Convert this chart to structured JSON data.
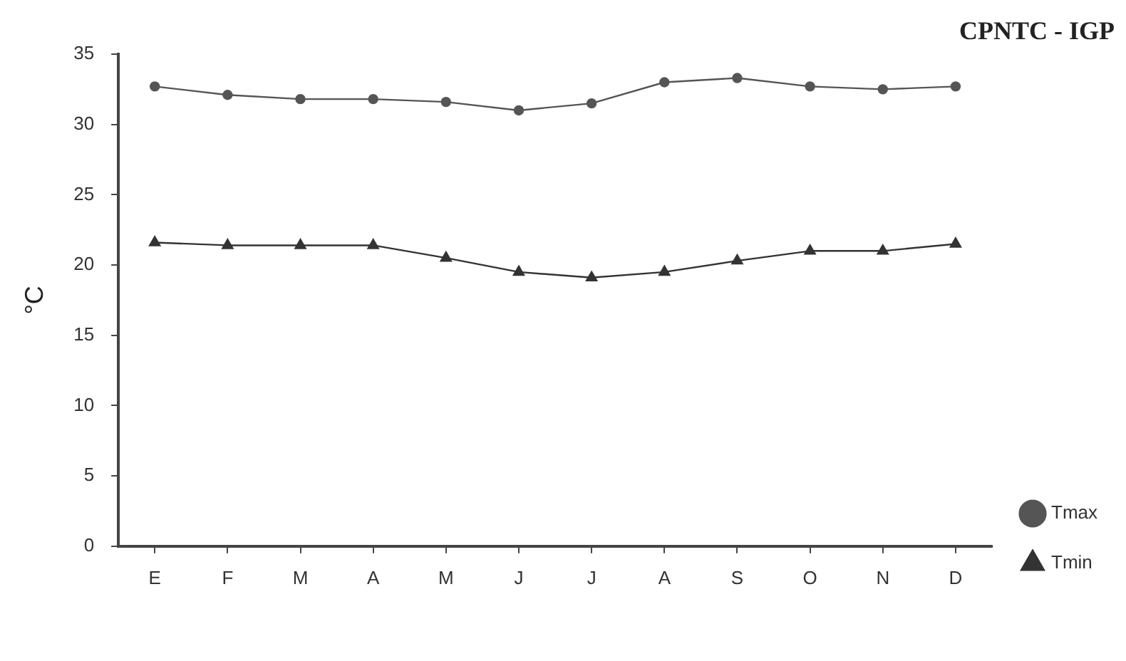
{
  "chart_data": {
    "type": "line",
    "ylabel": "°C",
    "annotations": [
      "CPNTC - IGP"
    ],
    "categories": [
      "E",
      "F",
      "M",
      "A",
      "M",
      "J",
      "J",
      "A",
      "S",
      "O",
      "N",
      "D"
    ],
    "series": [
      {
        "name": "Tmax",
        "color": "#555555",
        "marker": "circle",
        "values": [
          32.7,
          32.1,
          31.8,
          31.8,
          31.6,
          31.0,
          31.5,
          33.0,
          33.3,
          32.7,
          32.5,
          32.7
        ]
      },
      {
        "name": "Tmin",
        "color": "#333333",
        "marker": "triangle",
        "values": [
          21.6,
          21.4,
          21.4,
          21.4,
          20.5,
          19.5,
          19.1,
          19.5,
          20.3,
          21.0,
          21.0,
          21.5
        ]
      }
    ],
    "ylim": [
      0,
      35
    ],
    "yticks": [
      0,
      5,
      10,
      15,
      20,
      25,
      30,
      35
    ],
    "grid": false,
    "legend": "right",
    "line_style": "solid"
  }
}
